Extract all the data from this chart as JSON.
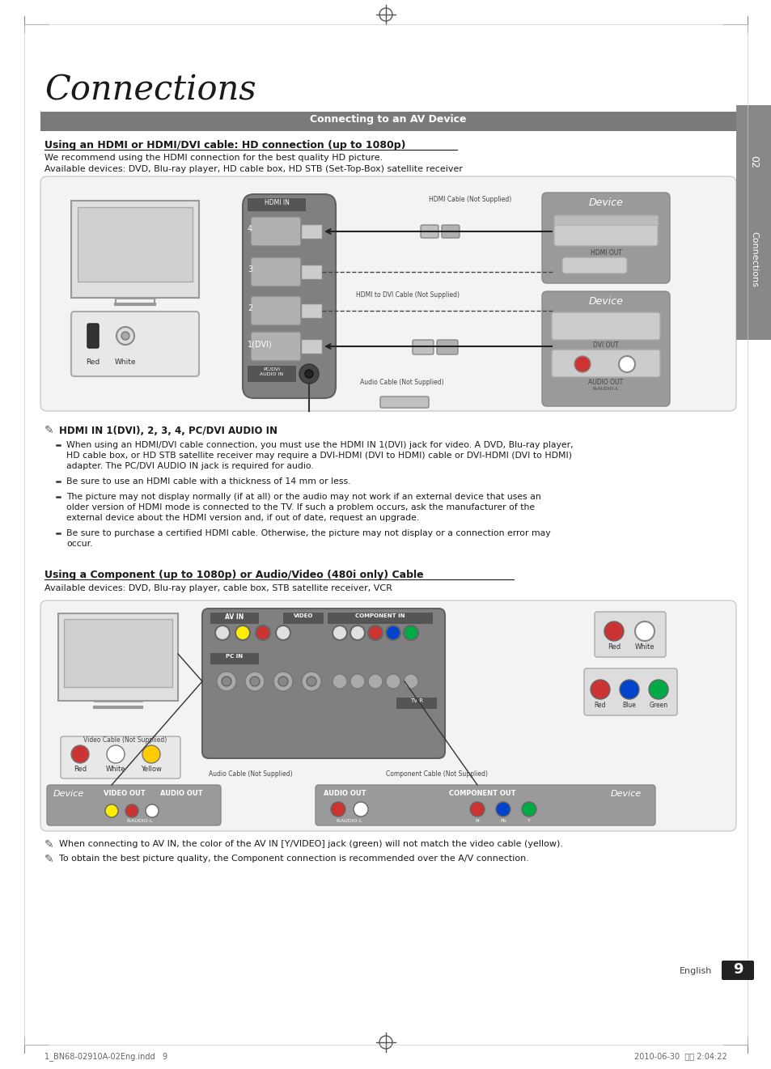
{
  "page_bg": "#ffffff",
  "title": "Connections",
  "section_header": "Connecting to an AV Device",
  "section_header_bg": "#7a7a7a",
  "section_header_color": "#ffffff",
  "subsection1_title": "Using an HDMI or HDMI/DVI cable: HD connection (up to 1080p)",
  "subsection1_text1": "We recommend using the HDMI connection for the best quality HD picture.",
  "subsection1_text2": "Available devices: DVD, Blu-ray player, HD cable box, HD STB (Set-Top-Box) satellite receiver",
  "subsection2_title": "Using a Component (up to 1080p) or Audio/Video (480i only) Cable",
  "subsection2_text1": "Available devices: DVD, Blu-ray player, cable box, STB satellite receiver, VCR",
  "note1_title": "HDMI IN 1(DVI), 2, 3, 4, PC/DVI AUDIO IN",
  "note1_bullets": [
    "When using an HDMI/DVI cable connection, you must use the HDMI IN 1(DVI) jack for video. A DVD, Blu-ray player, HD cable box, or HD STB satellite receiver may require a DVI-HDMI (DVI to HDMI) cable or DVI-HDMI (DVI to HDMI) adapter. The PC/DVI AUDIO IN jack is required for audio.",
    "Be sure to use an HDMI cable with a thickness of 14 mm or less.",
    "The picture may not display normally (if at all) or the audio may not work if an external device that uses an older version of HDMI mode is connected to the TV. If such a problem occurs, ask the manufacturer of the external device about the HDMI version and, if out of date, request an upgrade.",
    "Be sure to purchase a certified HDMI cable. Otherwise, the picture may not display or a connection error may occur."
  ],
  "note2_bullets": [
    "When connecting to AV IN, the color of the AV IN [Y/VIDEO] jack (green) will not match the video cable (yellow).",
    "To obtain the best picture quality, the Component connection is recommended over the A/V connection."
  ],
  "footer_left": "1_BN68-02910A-02Eng.indd   9",
  "footer_right": "2010-06-30  오후 2:04:22",
  "page_number": "9",
  "device_box_bg": "#9a9a9a",
  "panel_bg": "#888888"
}
